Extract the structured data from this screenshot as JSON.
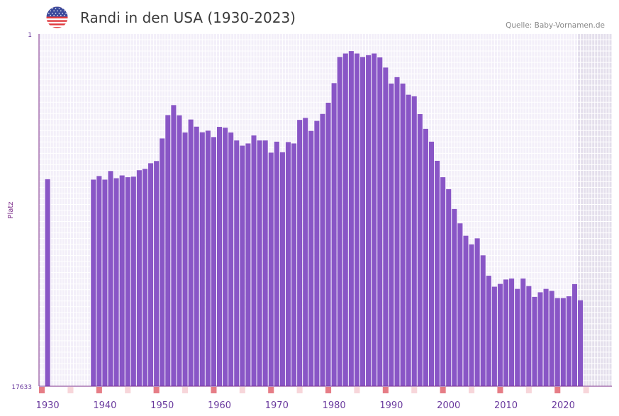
{
  "title": "Randi in den USA (1930-2023)",
  "source": "Quelle: Baby-Vornamen.de",
  "icons": {
    "flag": "us-flag-icon"
  },
  "chart_data": {
    "type": "bar",
    "title": "Randi in den USA (1930-2023)",
    "ylabel": "Platz",
    "xlabel": "",
    "y_axis_inverted": true,
    "ylim": [
      1,
      17633
    ],
    "ytick_labels": [
      "1",
      "17633"
    ],
    "xlim": [
      1929,
      2029
    ],
    "xtick_labels": [
      "1930",
      "1940",
      "1950",
      "1960",
      "1970",
      "1980",
      "1990",
      "2000",
      "2010",
      "2020"
    ],
    "years": [
      1930,
      1931,
      1932,
      1933,
      1934,
      1935,
      1936,
      1937,
      1938,
      1939,
      1940,
      1941,
      1942,
      1943,
      1944,
      1945,
      1946,
      1947,
      1948,
      1949,
      1950,
      1951,
      1952,
      1953,
      1954,
      1955,
      1956,
      1957,
      1958,
      1959,
      1960,
      1961,
      1962,
      1963,
      1964,
      1965,
      1966,
      1967,
      1968,
      1969,
      1970,
      1971,
      1972,
      1973,
      1974,
      1975,
      1976,
      1977,
      1978,
      1979,
      1980,
      1981,
      1982,
      1983,
      1984,
      1985,
      1986,
      1987,
      1988,
      1989,
      1990,
      1991,
      1992,
      1993,
      1994,
      1995,
      1996,
      1997,
      1998,
      1999,
      2000,
      2001,
      2002,
      2003,
      2004,
      2005,
      2006,
      2007,
      2008,
      2009,
      2010,
      2011,
      2012,
      2013,
      2014,
      2015,
      2016,
      2017,
      2018,
      2019,
      2020,
      2021,
      2022,
      2023
    ],
    "ranks": [
      7270,
      null,
      null,
      null,
      null,
      null,
      null,
      null,
      7290,
      7110,
      7290,
      6860,
      7220,
      7080,
      7170,
      7140,
      6820,
      6750,
      6470,
      6360,
      5230,
      4060,
      3560,
      4070,
      4930,
      4280,
      4640,
      4920,
      4840,
      5160,
      4650,
      4690,
      4930,
      5330,
      5590,
      5480,
      5080,
      5330,
      5330,
      5940,
      5390,
      5920,
      5410,
      5480,
      4300,
      4200,
      4850,
      4350,
      4000,
      3440,
      2460,
      1150,
      977,
      856,
      977,
      1150,
      1060,
      977,
      1170,
      1680,
      2480,
      2160,
      2480,
      3040,
      3120,
      4010,
      4750,
      5390,
      6350,
      7170,
      7770,
      8760,
      9480,
      10100,
      10530,
      10230,
      11080,
      12100,
      12650,
      12510,
      12290,
      12240,
      12760,
      12240,
      12620,
      13160,
      12930,
      12760,
      12860,
      13220,
      13220,
      13130,
      12520,
      13330
    ],
    "highlight_years": [
      1929,
      1939,
      1949,
      1959,
      1969,
      1979,
      1989,
      1999,
      2009,
      2019,
      2029
    ],
    "faint_highlight_years": [
      1934,
      1944,
      1954,
      1964,
      1974,
      1984,
      1994,
      2004,
      2014,
      2024
    ],
    "projection_start_year": 2023
  },
  "colors": {
    "bar": "#8956c6",
    "plot_bg": "#f3eff9",
    "projection_bg": "#e4dfec",
    "grid": "#ffffff",
    "axis": "#7c2d8a",
    "tick_text": "#6a3a9e",
    "ylabel_text": "#7c2d8a",
    "highlight": "#e67d86",
    "faint_highlight": "#f7d6da",
    "title_text": "#3a3a3a",
    "source_text": "#888888"
  }
}
